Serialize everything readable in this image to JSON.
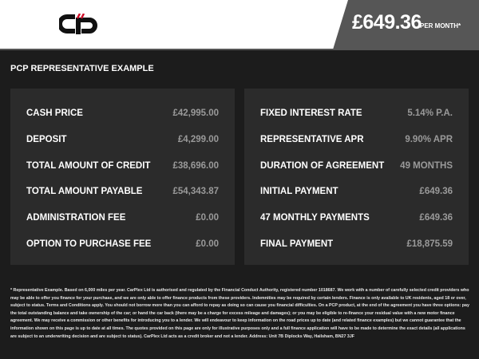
{
  "header": {
    "logo_text": "CP",
    "price": "£649.36",
    "per_month": "PER MONTH*"
  },
  "section_title": "PCP REPRESENTATIVE EXAMPLE",
  "left_panel": [
    {
      "label": "CASH PRICE",
      "value": "£42,995.00"
    },
    {
      "label": "DEPOSIT",
      "value": "£4,299.00"
    },
    {
      "label": "TOTAL AMOUNT OF CREDIT",
      "value": "£38,696.00"
    },
    {
      "label": "TOTAL AMOUNT PAYABLE",
      "value": "£54,343.87"
    },
    {
      "label": "ADMINISTRATION FEE",
      "value": "£0.00"
    },
    {
      "label": "OPTION TO PURCHASE FEE",
      "value": "£0.00"
    }
  ],
  "right_panel": [
    {
      "label": "FIXED INTEREST RATE",
      "value": "5.14% P.A."
    },
    {
      "label": "REPRESENTATIVE APR",
      "value": "9.90% APR"
    },
    {
      "label": "DURATION OF AGREEMENT",
      "value": "49 MONTHS"
    },
    {
      "label": "INITIAL PAYMENT",
      "value": "£649.36"
    },
    {
      "label": "47 MONTHLY PAYMENTS",
      "value": "£649.36"
    },
    {
      "label": "FINAL PAYMENT",
      "value": "£18,875.59"
    }
  ],
  "footer": "* Representative Example. Based on 6,000 miles per year. CarPlex Ltd is authorised and regulated by the Financial Conduct Authority, registered number 1018687. We work with a number of carefully selected credit providers who may be able to offer you finance for your purchase, and we are only able to offer finance products from these providers. Indemnities may be required by certain lenders. Finance is only available to UK residents, aged 18 or over, subject to status. Terms and Conditions apply. You should not borrow more than you can afford to repay as doing so can cause you financial difficulties. On a PCP product, at the end of the agreement you have three options: pay the total outstanding balance and take ownership of the car; or hand the car back (there may be a charge for excess mileage and damages); or you may be eligible to re-finance your residual value with a new motor finance agreement. We may receive a commission or other benefits for introducing you to a lender. We will endeavour to keep information on the road prices up to date (and related finance examples) but we cannot guarantee that the information shown on this page is up to date at all times. The quotes provided on this page are only for illustrative purposes only and a full finance application will have to be made to determine the exact details (all applications are subject to an underwriting decision and are subject to status). CarPlex Ltd acts as a credit broker and not a lender. Address: Unit 7B Diplocks Way, Hailsham, BN27 3JF",
  "colors": {
    "background": "#1c1c1c",
    "panel": "#2b2b2b",
    "price_panel": "#565656",
    "logo_accent": "#d0102a"
  }
}
